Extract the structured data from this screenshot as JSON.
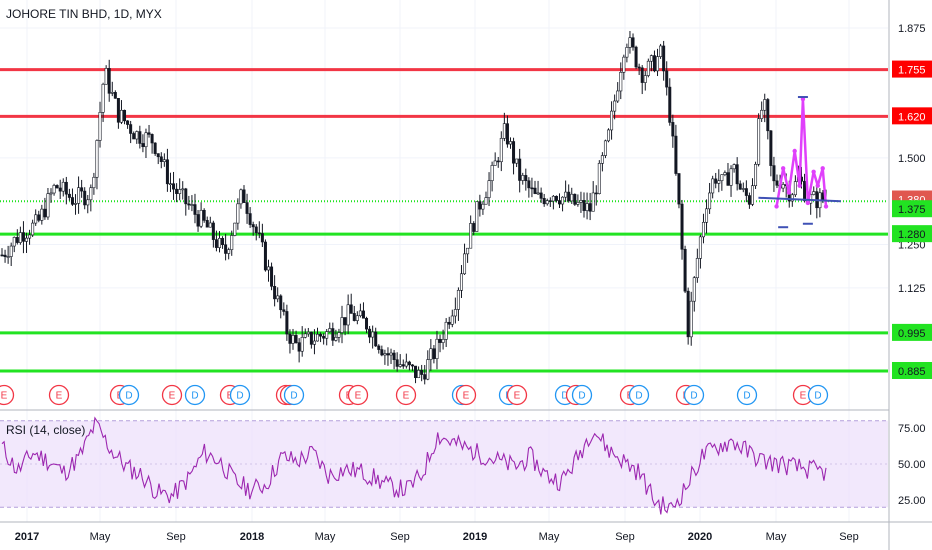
{
  "header": {
    "title": "JOHORE TIN BHD, 1D, MYX"
  },
  "rsi": {
    "label": "RSI (14, close)",
    "ticks": [
      "75.00",
      "50.00",
      "25.00"
    ],
    "line_color": "#9c27b0",
    "band_color": "#ede0fb"
  },
  "colors": {
    "up": "#131722",
    "down": "#131722",
    "resistance": "#f23645",
    "support": "#22e322",
    "dotted_support": "#22e322",
    "neckline": "#3f51b5",
    "pattern": "#e040fb",
    "earnings": "#f23645",
    "dividend": "#2196f3"
  },
  "chart_data": {
    "type": "line",
    "title": "JOHORE TIN BHD, 1D, MYX",
    "ylim": [
      0.82,
      1.9
    ],
    "x_labels": [
      {
        "text": "2017",
        "bold": true
      },
      {
        "text": "May",
        "bold": false
      },
      {
        "text": "Sep",
        "bold": false
      },
      {
        "text": "2018",
        "bold": true
      },
      {
        "text": "May",
        "bold": false
      },
      {
        "text": "Sep",
        "bold": false
      },
      {
        "text": "2019",
        "bold": true
      },
      {
        "text": "May",
        "bold": false
      },
      {
        "text": "Sep",
        "bold": false
      },
      {
        "text": "2020",
        "bold": true
      },
      {
        "text": "May",
        "bold": false
      },
      {
        "text": "Sep",
        "bold": false
      }
    ],
    "y_ticks": [
      1.875,
      1.5,
      1.25,
      1.125
    ],
    "price_labels": [
      {
        "text": "1.755",
        "value": 1.755,
        "kind": "resistance"
      },
      {
        "text": "1.620",
        "value": 1.62,
        "kind": "resistance"
      },
      {
        "text": "1.380",
        "value": 1.38,
        "kind": "current"
      },
      {
        "text": "1.375",
        "value": 1.375,
        "kind": "support"
      },
      {
        "text": "1.280",
        "value": 1.28,
        "kind": "support"
      },
      {
        "text": "0.995",
        "value": 0.995,
        "kind": "support"
      },
      {
        "text": "0.885",
        "value": 0.885,
        "kind": "support"
      }
    ],
    "horizontal_levels": [
      {
        "value": 1.755,
        "kind": "resistance"
      },
      {
        "value": 1.62,
        "kind": "resistance"
      },
      {
        "value": 1.375,
        "kind": "dotted_support"
      },
      {
        "value": 1.28,
        "kind": "support"
      },
      {
        "value": 0.995,
        "kind": "support"
      },
      {
        "value": 0.885,
        "kind": "support"
      }
    ],
    "price_path_t": [
      0,
      0.02,
      0.04,
      0.06,
      0.08,
      0.1,
      0.115,
      0.13,
      0.15,
      0.17,
      0.19,
      0.21,
      0.23,
      0.25,
      0.27,
      0.29,
      0.31,
      0.32,
      0.33,
      0.35,
      0.37,
      0.39,
      0.41,
      0.43,
      0.45,
      0.47,
      0.49,
      0.51,
      0.52,
      0.535,
      0.55,
      0.565,
      0.58,
      0.6,
      0.62,
      0.64,
      0.66,
      0.68,
      0.7,
      0.72,
      0.74,
      0.75,
      0.76,
      0.77,
      0.78,
      0.79,
      0.8,
      0.81,
      0.82,
      0.83,
      0.84,
      0.85,
      0.855,
      0.865,
      0.875,
      0.885,
      0.895,
      0.905,
      0.915,
      0.925
    ],
    "price_path_v": [
      1.22,
      1.28,
      1.31,
      1.42,
      1.38,
      1.4,
      1.75,
      1.63,
      1.57,
      1.55,
      1.42,
      1.36,
      1.3,
      1.22,
      1.4,
      1.25,
      1.08,
      1.0,
      0.96,
      0.98,
      1.0,
      1.05,
      1.02,
      0.94,
      0.9,
      0.87,
      0.96,
      1.1,
      1.24,
      1.36,
      1.45,
      1.58,
      1.45,
      1.38,
      1.4,
      1.37,
      1.35,
      1.55,
      1.85,
      1.74,
      1.8,
      1.62,
      1.35,
      1.0,
      1.2,
      1.37,
      1.45,
      1.42,
      1.48,
      1.4,
      1.38,
      1.6,
      1.67,
      1.42,
      1.44,
      1.4,
      1.44,
      1.38,
      1.38,
      1.38
    ],
    "rsi_path": [
      62,
      45,
      58,
      52,
      44,
      55,
      78,
      60,
      48,
      42,
      30,
      28,
      40,
      58,
      52,
      38,
      32,
      36,
      55,
      52,
      58,
      42,
      46,
      45,
      40,
      34,
      32,
      42,
      70,
      65,
      60,
      56,
      52,
      48,
      55,
      42,
      38,
      54,
      75,
      60,
      52,
      44,
      24,
      18,
      34,
      55,
      62,
      66,
      58,
      52,
      50,
      48,
      46,
      44
    ],
    "events": [
      {
        "type": "E"
      },
      {
        "type": "E"
      },
      {
        "type": "E"
      },
      {
        "type": "D"
      },
      {
        "type": "E"
      },
      {
        "type": "D"
      },
      {
        "type": "E"
      },
      {
        "type": "D"
      },
      {
        "type": "E"
      },
      {
        "type": "E"
      },
      {
        "type": "D"
      },
      {
        "type": "E"
      },
      {
        "type": "E"
      },
      {
        "type": "E"
      },
      {
        "type": "D"
      },
      {
        "type": "E"
      },
      {
        "type": "D"
      },
      {
        "type": "E"
      },
      {
        "type": "D"
      },
      {
        "type": "E"
      },
      {
        "type": "D"
      },
      {
        "type": "E"
      },
      {
        "type": "D"
      },
      {
        "type": "E"
      },
      {
        "type": "D"
      },
      {
        "type": "D"
      },
      {
        "type": "E"
      },
      {
        "type": "D"
      }
    ]
  }
}
